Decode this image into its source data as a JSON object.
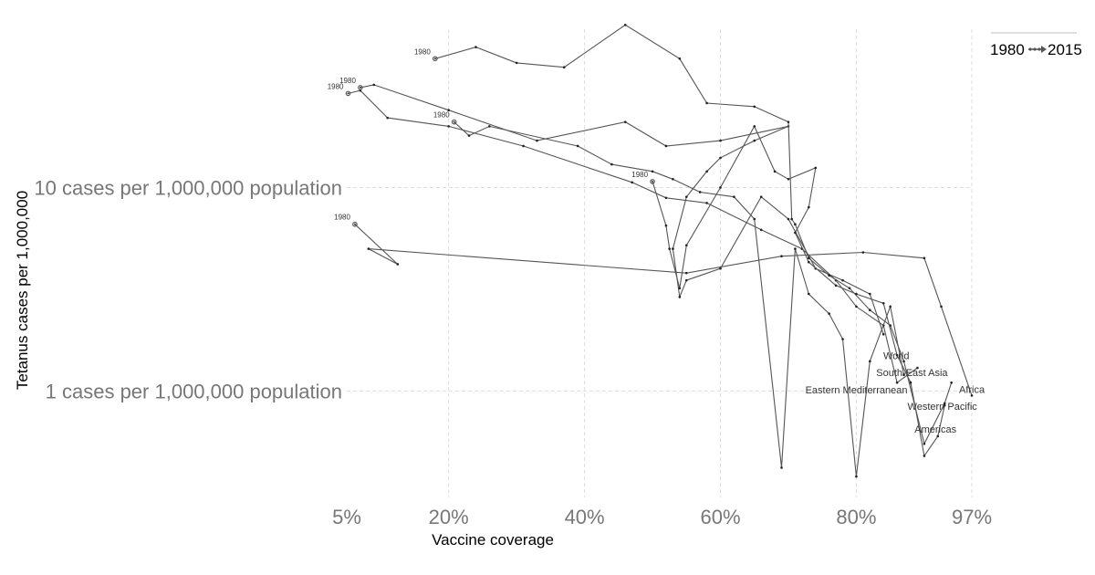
{
  "chart_data": {
    "type": "line",
    "subtype": "connected-scatter",
    "title": "",
    "xlabel": "Vaccine coverage",
    "ylabel": "Tetanus cases per 1,000,000",
    "x_scale": "linear",
    "y_scale": "log",
    "xlim": [
      5,
      97
    ],
    "ylim": [
      0.3,
      60
    ],
    "x_ticks": [
      {
        "value": 5,
        "label": "5%"
      },
      {
        "value": 20,
        "label": "20%"
      },
      {
        "value": 40,
        "label": "40%"
      },
      {
        "value": 60,
        "label": "60%"
      },
      {
        "value": 80,
        "label": "80%"
      },
      {
        "value": 97,
        "label": "97%"
      }
    ],
    "y_ticks": [
      {
        "value": 10,
        "label": "10 cases per 1,000,000 population"
      },
      {
        "value": 1,
        "label": "1 cases per 1,000,000 population"
      }
    ],
    "grid": true,
    "legend": {
      "start": "1980",
      "end": "2015",
      "placement": "top-right"
    },
    "series": [
      {
        "name": "Africa",
        "start_label": "1980",
        "points": [
          [
            6.2,
            6.6
          ],
          [
            12.5,
            4.2
          ],
          [
            8.2,
            5.0
          ],
          [
            55.0,
            3.8
          ],
          [
            69.0,
            4.6
          ],
          [
            81.0,
            4.8
          ],
          [
            90.0,
            4.5
          ],
          [
            92.5,
            2.6
          ],
          [
            97.0,
            0.95
          ]
        ]
      },
      {
        "name": "South-East Asia",
        "start_label": "1980",
        "points": [
          [
            5.2,
            29
          ],
          [
            7.0,
            30
          ],
          [
            11.0,
            22
          ],
          [
            20.0,
            20
          ],
          [
            31.0,
            16
          ],
          [
            47.0,
            10.6
          ],
          [
            52.0,
            8.9
          ],
          [
            58.0,
            8.4
          ],
          [
            66.0,
            6.2
          ],
          [
            72.0,
            5.0
          ],
          [
            77.0,
            3.5
          ],
          [
            80.0,
            2.6
          ],
          [
            84.0,
            2.1
          ],
          [
            86.0,
            1.1
          ],
          [
            89.0,
            1.3
          ]
        ]
      },
      {
        "name": "Eastern Mediterranean",
        "start_label": "1980",
        "points": [
          [
            20.8,
            21
          ],
          [
            23.0,
            18
          ],
          [
            26.0,
            20
          ],
          [
            39.0,
            16
          ],
          [
            44.0,
            13
          ],
          [
            50.0,
            12
          ],
          [
            53.0,
            11
          ],
          [
            57.0,
            9.5
          ],
          [
            62.0,
            9.0
          ],
          [
            65.0,
            7.0
          ],
          [
            69.0,
            0.42
          ],
          [
            71.0,
            5.0
          ],
          [
            73.0,
            3.0
          ],
          [
            76.0,
            2.4
          ],
          [
            78.0,
            1.8
          ],
          [
            80.0,
            0.38
          ],
          [
            82.0,
            1.4
          ],
          [
            85.0,
            2.6
          ],
          [
            87.0,
            1.2
          ]
        ]
      },
      {
        "name": "World",
        "start_label": "1980",
        "points": [
          [
            7.0,
            31
          ],
          [
            9.0,
            32
          ],
          [
            20.0,
            24
          ],
          [
            33.0,
            17
          ],
          [
            46.0,
            21
          ],
          [
            52.0,
            16
          ],
          [
            60.0,
            17
          ],
          [
            70.0,
            20
          ],
          [
            65.0,
            17
          ],
          [
            60.0,
            14
          ],
          [
            58.0,
            12
          ],
          [
            55.0,
            9.0
          ],
          [
            53.0,
            5.0
          ],
          [
            54.0,
            2.9
          ],
          [
            55.0,
            3.5
          ],
          [
            60.0,
            4.0
          ],
          [
            66.0,
            9.0
          ],
          [
            70.0,
            7.0
          ],
          [
            74.0,
            4.0
          ],
          [
            78.0,
            3.5
          ],
          [
            82.0,
            3.0
          ],
          [
            84.0,
            1.9
          ]
        ]
      },
      {
        "name": "Western Pacific",
        "start_label": "1980",
        "points": [
          [
            18.0,
            43
          ],
          [
            24.0,
            49
          ],
          [
            30.0,
            41
          ],
          [
            37.0,
            39
          ],
          [
            46.0,
            63
          ],
          [
            54.0,
            43
          ],
          [
            58.0,
            26
          ],
          [
            65.0,
            25
          ],
          [
            70.0,
            21
          ],
          [
            70.5,
            7.0
          ],
          [
            71.0,
            6.6
          ],
          [
            73.0,
            4.5
          ],
          [
            76.0,
            3.7
          ],
          [
            79.0,
            3.2
          ],
          [
            82.0,
            2.5
          ],
          [
            85.0,
            2.1
          ],
          [
            87.0,
            1.4
          ],
          [
            90.0,
            0.55
          ],
          [
            93.0,
            0.87
          ],
          [
            94.0,
            1.1
          ]
        ]
      },
      {
        "name": "Americas",
        "start_label": "1980",
        "points": [
          [
            50.0,
            10.7
          ],
          [
            52.0,
            6.5
          ],
          [
            52.5,
            5.0
          ],
          [
            54.0,
            3.2
          ],
          [
            55.0,
            5.2
          ],
          [
            60.0,
            10.0
          ],
          [
            65.0,
            20.0
          ],
          [
            68.0,
            12.0
          ],
          [
            70.0,
            11.0
          ],
          [
            74.0,
            12.5
          ],
          [
            73.0,
            8.0
          ],
          [
            71.0,
            6.0
          ],
          [
            73.0,
            4.3
          ],
          [
            77.0,
            3.3
          ],
          [
            80.0,
            3.0
          ],
          [
            84.0,
            2.7
          ],
          [
            86.0,
            1.5
          ],
          [
            88.0,
            1.1
          ],
          [
            90.0,
            0.48
          ],
          [
            92.0,
            0.6
          ],
          [
            93.0,
            0.85
          ]
        ]
      }
    ]
  }
}
